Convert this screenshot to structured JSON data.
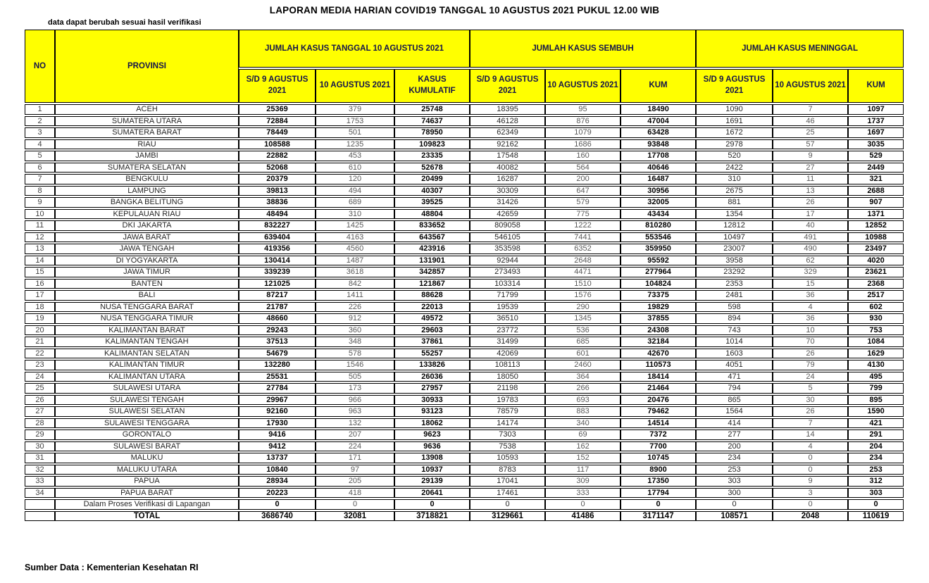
{
  "title": "LAPORAN MEDIA HARIAN COVID19 TANGGAL 10 AGUSTUS 2021 PUKUL 12.00 WIB",
  "note": "data dapat berubah sesuai hasil verifikasi",
  "source": "Sumber Data : Kementerian Kesehatan RI",
  "colors": {
    "header_bg": "#FFFF00",
    "header_text": "#14144b",
    "grid": "#000000",
    "value_bold": "#000000",
    "value_dark": "#262626",
    "value_muted": "#595959"
  },
  "table": {
    "no_header": "NO",
    "provinsi_header": "PROVINSI",
    "groups": [
      {
        "label": "JUMLAH KASUS TANGGAL 10 AGUSTUS 2021",
        "sub": [
          "S/D 9 AGUSTUS 2021",
          "10 AGUSTUS 2021",
          "KASUS KUMULATIF"
        ]
      },
      {
        "label": "JUMLAH KASUS SEMBUH",
        "sub": [
          "S/D 9 AGUSTUS 2021",
          "10 AGUSTUS 2021",
          "KUM"
        ]
      },
      {
        "label": "JUMLAH KASUS MENINGGAL",
        "sub": [
          "S/D 9 AGUSTUS 2021",
          "10 AGUSTUS 2021",
          "KUM"
        ]
      }
    ],
    "rows": [
      {
        "type": "data",
        "no": "1",
        "provinsi": "ACEH",
        "values": [
          "25369",
          "379",
          "25748",
          "18395",
          "95",
          "18490",
          "1090",
          "7",
          "1097"
        ]
      },
      {
        "type": "data",
        "no": "2",
        "provinsi": "SUMATERA UTARA",
        "values": [
          "72884",
          "1753",
          "74637",
          "46128",
          "876",
          "47004",
          "1691",
          "46",
          "1737"
        ]
      },
      {
        "type": "data",
        "no": "3",
        "provinsi": "SUMATERA BARAT",
        "values": [
          "78449",
          "501",
          "78950",
          "62349",
          "1079",
          "63428",
          "1672",
          "25",
          "1697"
        ]
      },
      {
        "type": "data",
        "no": "4",
        "provinsi": "RIAU",
        "values": [
          "108588",
          "1235",
          "109823",
          "92162",
          "1686",
          "93848",
          "2978",
          "57",
          "3035"
        ]
      },
      {
        "type": "data",
        "no": "5",
        "provinsi": "JAMBI",
        "values": [
          "22882",
          "453",
          "23335",
          "17548",
          "160",
          "17708",
          "520",
          "9",
          "529"
        ]
      },
      {
        "type": "data",
        "no": "6",
        "provinsi": "SUMATERA SELATAN",
        "values": [
          "52068",
          "610",
          "52678",
          "40082",
          "564",
          "40646",
          "2422",
          "27",
          "2449"
        ]
      },
      {
        "type": "data",
        "no": "7",
        "provinsi": "BENGKULU",
        "values": [
          "20379",
          "120",
          "20499",
          "16287",
          "200",
          "16487",
          "310",
          "11",
          "321"
        ]
      },
      {
        "type": "data",
        "no": "8",
        "provinsi": "LAMPUNG",
        "values": [
          "39813",
          "494",
          "40307",
          "30309",
          "647",
          "30956",
          "2675",
          "13",
          "2688"
        ]
      },
      {
        "type": "data",
        "no": "9",
        "provinsi": "BANGKA BELITUNG",
        "values": [
          "38836",
          "689",
          "39525",
          "31426",
          "579",
          "32005",
          "881",
          "26",
          "907"
        ]
      },
      {
        "type": "data",
        "no": "10",
        "provinsi": "KEPULAUAN RIAU",
        "values": [
          "48494",
          "310",
          "48804",
          "42659",
          "775",
          "43434",
          "1354",
          "17",
          "1371"
        ]
      },
      {
        "type": "data",
        "no": "11",
        "provinsi": "DKI JAKARTA",
        "values": [
          "832227",
          "1425",
          "833652",
          "809058",
          "1222",
          "810280",
          "12812",
          "40",
          "12852"
        ]
      },
      {
        "type": "data",
        "no": "12",
        "provinsi": "JAWA BARAT",
        "values": [
          "639404",
          "4163",
          "643567",
          "546105",
          "7441",
          "553546",
          "10497",
          "491",
          "10988"
        ]
      },
      {
        "type": "data",
        "no": "13",
        "provinsi": "JAWA TENGAH",
        "values": [
          "419356",
          "4560",
          "423916",
          "353598",
          "6352",
          "359950",
          "23007",
          "490",
          "23497"
        ]
      },
      {
        "type": "data",
        "no": "14",
        "provinsi": "DI YOGYAKARTA",
        "values": [
          "130414",
          "1487",
          "131901",
          "92944",
          "2648",
          "95592",
          "3958",
          "62",
          "4020"
        ]
      },
      {
        "type": "data",
        "no": "15",
        "provinsi": "JAWA TIMUR",
        "values": [
          "339239",
          "3618",
          "342857",
          "273493",
          "4471",
          "277964",
          "23292",
          "329",
          "23621"
        ]
      },
      {
        "type": "data",
        "no": "16",
        "provinsi": "BANTEN",
        "values": [
          "121025",
          "842",
          "121867",
          "103314",
          "1510",
          "104824",
          "2353",
          "15",
          "2368"
        ]
      },
      {
        "type": "data",
        "no": "17",
        "provinsi": "BALI",
        "values": [
          "87217",
          "1411",
          "88628",
          "71799",
          "1576",
          "73375",
          "2481",
          "36",
          "2517"
        ]
      },
      {
        "type": "data",
        "no": "18",
        "provinsi": "NUSA TENGGARA BARAT",
        "values": [
          "21787",
          "226",
          "22013",
          "19539",
          "290",
          "19829",
          "598",
          "4",
          "602"
        ]
      },
      {
        "type": "data",
        "no": "19",
        "provinsi": "NUSA TENGGARA TIMUR",
        "values": [
          "48660",
          "912",
          "49572",
          "36510",
          "1345",
          "37855",
          "894",
          "36",
          "930"
        ]
      },
      {
        "type": "data",
        "no": "20",
        "provinsi": "KALIMANTAN BARAT",
        "values": [
          "29243",
          "360",
          "29603",
          "23772",
          "536",
          "24308",
          "743",
          "10",
          "753"
        ]
      },
      {
        "type": "data",
        "no": "21",
        "provinsi": "KALIMANTAN TENGAH",
        "values": [
          "37513",
          "348",
          "37861",
          "31499",
          "685",
          "32184",
          "1014",
          "70",
          "1084"
        ]
      },
      {
        "type": "data",
        "no": "22",
        "provinsi": "KALIMANTAN SELATAN",
        "values": [
          "54679",
          "578",
          "55257",
          "42069",
          "601",
          "42670",
          "1603",
          "26",
          "1629"
        ]
      },
      {
        "type": "data",
        "no": "23",
        "provinsi": "KALIMANTAN TIMUR",
        "values": [
          "132280",
          "1546",
          "133826",
          "108113",
          "2460",
          "110573",
          "4051",
          "79",
          "4130"
        ]
      },
      {
        "type": "data",
        "no": "24",
        "provinsi": "KALIMANTAN UTARA",
        "values": [
          "25531",
          "505",
          "26036",
          "18050",
          "364",
          "18414",
          "471",
          "24",
          "495"
        ]
      },
      {
        "type": "data",
        "no": "25",
        "provinsi": "SULAWESI UTARA",
        "values": [
          "27784",
          "173",
          "27957",
          "21198",
          "266",
          "21464",
          "794",
          "5",
          "799"
        ]
      },
      {
        "type": "data",
        "no": "26",
        "provinsi": "SULAWESI TENGAH",
        "values": [
          "29967",
          "966",
          "30933",
          "19783",
          "693",
          "20476",
          "865",
          "30",
          "895"
        ]
      },
      {
        "type": "data",
        "no": "27",
        "provinsi": "SULAWESI SELATAN",
        "values": [
          "92160",
          "963",
          "93123",
          "78579",
          "883",
          "79462",
          "1564",
          "26",
          "1590"
        ]
      },
      {
        "type": "data",
        "no": "28",
        "provinsi": "SULAWESI TENGGARA",
        "values": [
          "17930",
          "132",
          "18062",
          "14174",
          "340",
          "14514",
          "414",
          "7",
          "421"
        ]
      },
      {
        "type": "data",
        "no": "29",
        "provinsi": "GORONTALO",
        "values": [
          "9416",
          "207",
          "9623",
          "7303",
          "69",
          "7372",
          "277",
          "14",
          "291"
        ]
      },
      {
        "type": "data",
        "no": "30",
        "provinsi": "SULAWESI BARAT",
        "values": [
          "9412",
          "224",
          "9636",
          "7538",
          "162",
          "7700",
          "200",
          "4",
          "204"
        ]
      },
      {
        "type": "data",
        "no": "31",
        "provinsi": "MALUKU",
        "values": [
          "13737",
          "171",
          "13908",
          "10593",
          "152",
          "10745",
          "234",
          "0",
          "234"
        ]
      },
      {
        "type": "data",
        "no": "32",
        "provinsi": "MALUKU UTARA",
        "values": [
          "10840",
          "97",
          "10937",
          "8783",
          "117",
          "8900",
          "253",
          "0",
          "253"
        ]
      },
      {
        "type": "data",
        "no": "33",
        "provinsi": "PAPUA",
        "values": [
          "28934",
          "205",
          "29139",
          "17041",
          "309",
          "17350",
          "303",
          "9",
          "312"
        ]
      },
      {
        "type": "data",
        "no": "34",
        "provinsi": "PAPUA BARAT",
        "values": [
          "20223",
          "418",
          "20641",
          "17461",
          "333",
          "17794",
          "300",
          "3",
          "303"
        ]
      },
      {
        "type": "verification",
        "no": "",
        "provinsi": "Dalam Proses Verifikasi di Lapangan",
        "values": [
          "0",
          "0",
          "0",
          "0",
          "0",
          "0",
          "0",
          "0",
          "0"
        ]
      },
      {
        "type": "total",
        "no": "",
        "provinsi": "TOTAL",
        "values": [
          "3686740",
          "32081",
          "3718821",
          "3129661",
          "41486",
          "3171147",
          "108571",
          "2048",
          "110619"
        ]
      }
    ]
  }
}
